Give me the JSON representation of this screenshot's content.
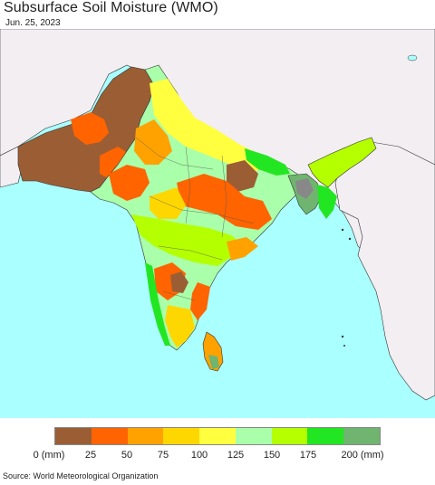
{
  "title": "Subsurface Soil Moisture (WMO)",
  "date": "Jun. 25, 2023",
  "source": "Source: World Meteorological Organization",
  "legend": {
    "colors": [
      "#9b5e34",
      "#ff6400",
      "#ffa200",
      "#ffd700",
      "#ffff40",
      "#aaffaa",
      "#b4ff00",
      "#22e622",
      "#6fb56f"
    ],
    "labels": [
      "0 (mm)",
      "25",
      "50",
      "75",
      "100",
      "125",
      "150",
      "175",
      "200 (mm)"
    ]
  },
  "map_colors": {
    "ocean": "#aaffff",
    "land_outside": "#f2eef2",
    "border": "#333333"
  }
}
